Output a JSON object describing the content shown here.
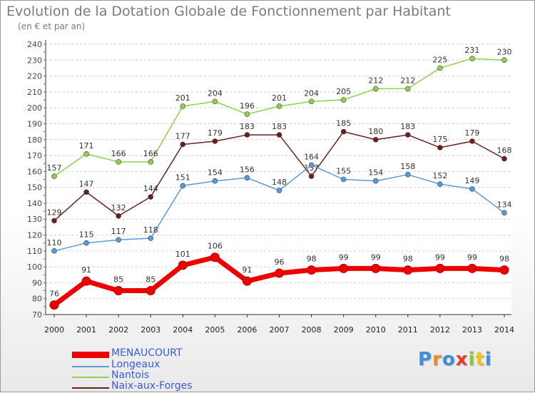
{
  "title": "Evolution de la Dotation Globale de Fonctionnement par Habitant",
  "subtitle": "(en € et par an)",
  "logo_text": "Proxiti",
  "chart_data": {
    "type": "line",
    "x": [
      2000,
      2001,
      2002,
      2003,
      2004,
      2005,
      2006,
      2007,
      2008,
      2009,
      2010,
      2011,
      2012,
      2013,
      2014
    ],
    "ylim": [
      70,
      240
    ],
    "yticks": [
      70,
      80,
      90,
      100,
      110,
      120,
      130,
      140,
      150,
      160,
      170,
      180,
      190,
      200,
      210,
      220,
      230,
      240
    ],
    "grid": "horizontal dashed",
    "legend_position": "bottom-left",
    "series": [
      {
        "name": "Nantois",
        "color": "#8fd14f",
        "values": [
          157,
          171,
          166,
          166,
          201,
          204,
          196,
          201,
          204,
          205,
          212,
          212,
          225,
          231,
          230
        ]
      },
      {
        "name": "Naix-aux-Forges",
        "color": "#6b1f1f",
        "values": [
          129,
          147,
          132,
          144,
          177,
          179,
          183,
          183,
          157,
          185,
          180,
          183,
          175,
          179,
          168
        ]
      },
      {
        "name": "Longeaux",
        "color": "#5b9bd5",
        "values": [
          110,
          115,
          117,
          118,
          151,
          154,
          156,
          148,
          164,
          155,
          154,
          158,
          152,
          149,
          134
        ]
      },
      {
        "name": "MENAUCOURT",
        "color": "#ee0000",
        "values": [
          76,
          91,
          85,
          85,
          101,
          106,
          91,
          96,
          98,
          99,
          99,
          98,
          99,
          99,
          98
        ]
      }
    ]
  },
  "legend": [
    {
      "name": "MENAUCOURT",
      "color": "#ee0000",
      "text_color": "#3b59e0"
    },
    {
      "name": "Longeaux",
      "color": "#5b9bd5",
      "text_color": "#3b59e0"
    },
    {
      "name": "Nantois",
      "color": "#8fd14f",
      "text_color": "#3b59e0"
    },
    {
      "name": "Naix-aux-Forges",
      "color": "#6b1f1f",
      "text_color": "#3b59e0"
    }
  ]
}
